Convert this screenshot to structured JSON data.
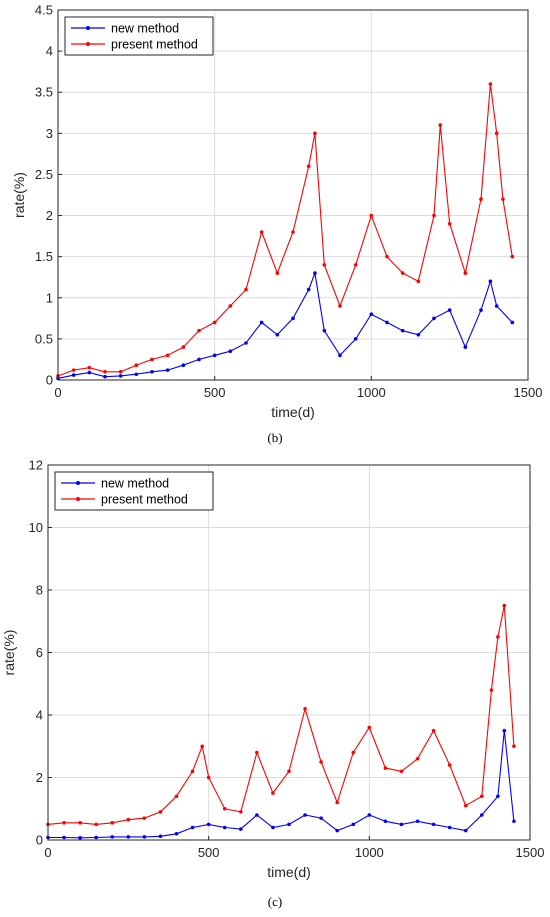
{
  "chart_data": [
    {
      "type": "line",
      "caption": "(b)",
      "xlabel": "time(d)",
      "ylabel": "rate(%)",
      "xlim": [
        0,
        1500
      ],
      "ylim": [
        0,
        4.5
      ],
      "xticks": [
        "0",
        "500",
        "1000",
        "1500"
      ],
      "yticks": [
        "0",
        "0.5",
        "1",
        "1.5",
        "2",
        "2.5",
        "3",
        "3.5",
        "4",
        "4.5"
      ],
      "grid": true,
      "legend_position": "top-left",
      "series": [
        {
          "name": "new method",
          "color": "#0000ff",
          "x": [
            0,
            50,
            100,
            150,
            200,
            250,
            300,
            350,
            400,
            450,
            500,
            550,
            600,
            650,
            700,
            750,
            800,
            820,
            850,
            900,
            950,
            1000,
            1050,
            1100,
            1150,
            1200,
            1250,
            1300,
            1350,
            1380,
            1400,
            1450
          ],
          "y": [
            0.02,
            0.06,
            0.09,
            0.04,
            0.05,
            0.07,
            0.1,
            0.12,
            0.18,
            0.25,
            0.3,
            0.35,
            0.45,
            0.7,
            0.55,
            0.75,
            1.1,
            1.3,
            0.6,
            0.3,
            0.5,
            0.8,
            0.7,
            0.6,
            0.55,
            0.75,
            0.85,
            0.4,
            0.85,
            1.2,
            0.9,
            0.7
          ]
        },
        {
          "name": "present method",
          "color": "#ff0000",
          "x": [
            0,
            50,
            100,
            150,
            200,
            250,
            300,
            350,
            400,
            450,
            500,
            550,
            600,
            650,
            700,
            750,
            800,
            820,
            850,
            900,
            950,
            1000,
            1050,
            1100,
            1150,
            1200,
            1220,
            1250,
            1300,
            1350,
            1380,
            1400,
            1420,
            1450
          ],
          "y": [
            0.05,
            0.12,
            0.15,
            0.1,
            0.1,
            0.18,
            0.25,
            0.3,
            0.4,
            0.6,
            0.7,
            0.9,
            1.1,
            1.8,
            1.3,
            1.8,
            2.6,
            3.0,
            1.4,
            0.9,
            1.4,
            2.0,
            1.5,
            1.3,
            1.2,
            2.0,
            3.1,
            1.9,
            1.3,
            2.2,
            3.6,
            3.0,
            2.2,
            1.5
          ]
        }
      ]
    },
    {
      "type": "line",
      "caption": "(c)",
      "xlabel": "time(d)",
      "ylabel": "rate(%)",
      "xlim": [
        0,
        1500
      ],
      "ylim": [
        0,
        12
      ],
      "xticks": [
        "0",
        "500",
        "1000",
        "1500"
      ],
      "yticks": [
        "0",
        "2",
        "4",
        "6",
        "8",
        "10",
        "12"
      ],
      "grid": true,
      "legend_position": "top-left",
      "series": [
        {
          "name": "new method",
          "color": "#0000ff",
          "x": [
            0,
            50,
            100,
            150,
            200,
            250,
            300,
            350,
            400,
            450,
            500,
            550,
            600,
            650,
            700,
            750,
            800,
            850,
            900,
            950,
            1000,
            1050,
            1100,
            1150,
            1200,
            1250,
            1300,
            1350,
            1400,
            1420,
            1450
          ],
          "y": [
            0.08,
            0.08,
            0.07,
            0.08,
            0.1,
            0.1,
            0.1,
            0.12,
            0.2,
            0.4,
            0.5,
            0.4,
            0.35,
            0.8,
            0.4,
            0.5,
            0.8,
            0.7,
            0.3,
            0.5,
            0.8,
            0.6,
            0.5,
            0.6,
            0.5,
            0.4,
            0.3,
            0.8,
            1.4,
            3.5,
            0.6
          ]
        },
        {
          "name": "present method",
          "color": "#ff0000",
          "x": [
            0,
            50,
            100,
            150,
            200,
            250,
            300,
            350,
            400,
            450,
            480,
            500,
            550,
            600,
            650,
            700,
            750,
            800,
            850,
            900,
            950,
            1000,
            1050,
            1100,
            1150,
            1200,
            1250,
            1300,
            1350,
            1380,
            1400,
            1420,
            1450
          ],
          "y": [
            0.5,
            0.55,
            0.55,
            0.5,
            0.55,
            0.65,
            0.7,
            0.9,
            1.4,
            2.2,
            3.0,
            2.0,
            1.0,
            0.9,
            2.8,
            1.5,
            2.2,
            4.2,
            2.5,
            1.2,
            2.8,
            3.6,
            2.3,
            2.2,
            2.6,
            3.5,
            2.4,
            1.1,
            1.4,
            4.8,
            6.5,
            7.5,
            3.0
          ]
        }
      ]
    }
  ]
}
